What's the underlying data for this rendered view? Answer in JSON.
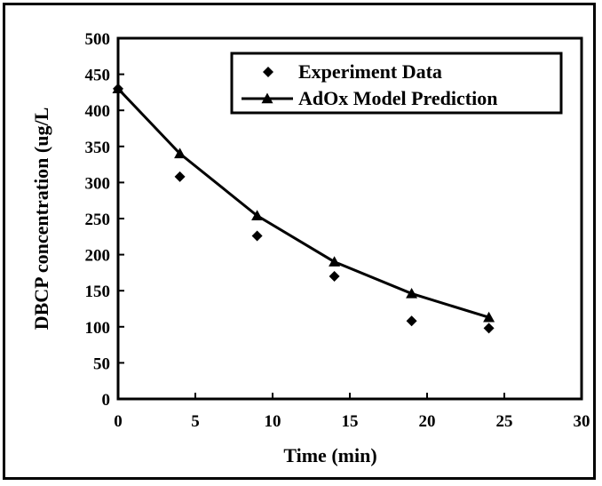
{
  "chart_data": {
    "type": "scatter",
    "title": "",
    "xlabel": "Time (min)",
    "ylabel": "DBCP concentration (ug/L",
    "xlim": [
      0,
      30
    ],
    "ylim": [
      0,
      500
    ],
    "x_ticks": [
      "0",
      "5",
      "10",
      "15",
      "20",
      "25",
      "30"
    ],
    "y_ticks": [
      "0",
      "50",
      "100",
      "150",
      "200",
      "250",
      "300",
      "350",
      "400",
      "450",
      "500"
    ],
    "grid": false,
    "legend_position": "top-right",
    "series": [
      {
        "name": "Experiment Data",
        "kind": "scatter",
        "marker": "diamond",
        "color": "#000000",
        "x": [
          0,
          4,
          9,
          14,
          19,
          24
        ],
        "y": [
          430,
          308,
          226,
          170,
          108,
          98
        ]
      },
      {
        "name": "AdOx Model Prediction",
        "kind": "line",
        "marker": "triangle",
        "color": "#000000",
        "x": [
          0,
          4,
          9,
          14,
          19,
          24
        ],
        "y": [
          430,
          340,
          254,
          190,
          146,
          113
        ]
      }
    ]
  }
}
